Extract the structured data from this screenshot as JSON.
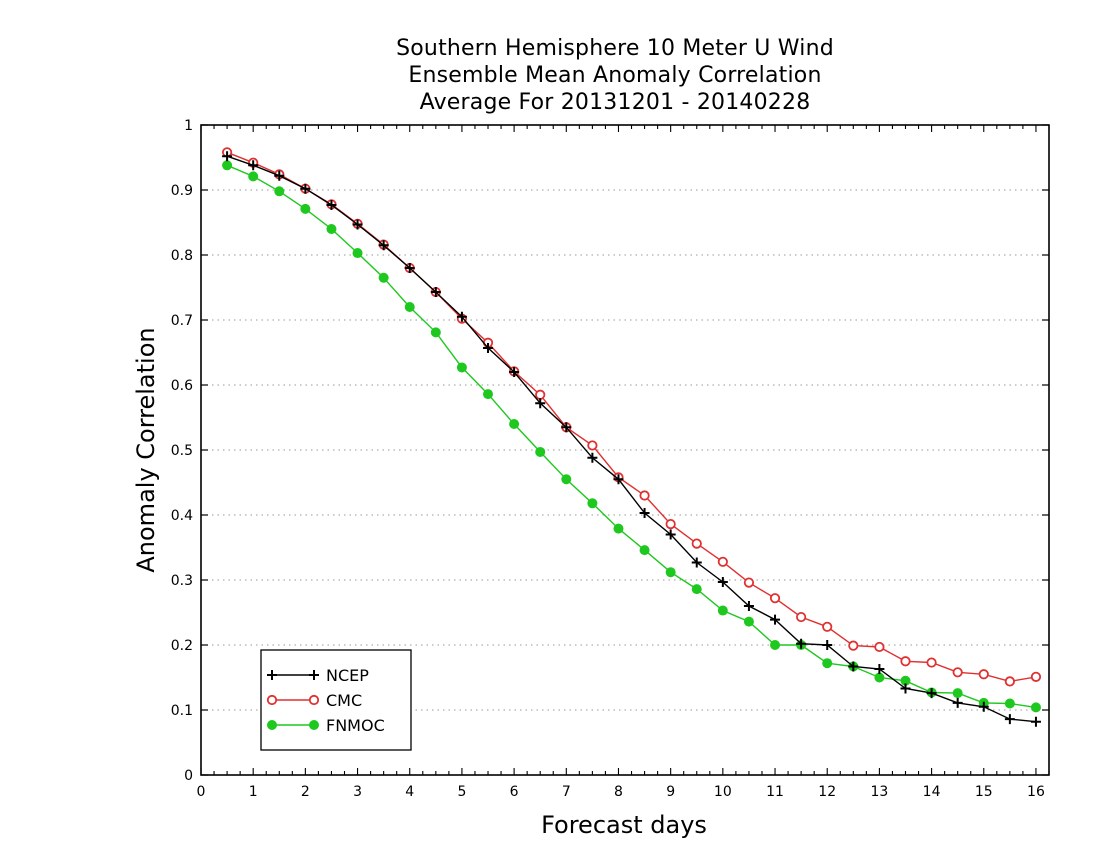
{
  "chart_data": {
    "type": "line",
    "title": [
      "Southern Hemisphere 10 Meter U Wind",
      "Ensemble Mean Anomaly Correlation",
      "Average For 20131201 - 20140228"
    ],
    "xlabel": "Forecast days",
    "ylabel": "Anomaly Correlation",
    "xlim": [
      0,
      16.25
    ],
    "ylim": [
      0,
      1
    ],
    "xticks": [
      "0",
      "1",
      "2",
      "3",
      "4",
      "5",
      "6",
      "7",
      "8",
      "9",
      "10",
      "11",
      "12",
      "13",
      "14",
      "15",
      "16"
    ],
    "yticks": [
      "0",
      "0.1",
      "0.2",
      "0.3",
      "0.4",
      "0.5",
      "0.6",
      "0.7",
      "0.8",
      "0.9",
      "1"
    ],
    "grid": "horizontal dotted",
    "legend_position": "bottom-left",
    "x": [
      0.5,
      1,
      1.5,
      2,
      2.5,
      3,
      3.5,
      4,
      4.5,
      5,
      5.5,
      6,
      6.5,
      7,
      7.5,
      8,
      8.5,
      9,
      9.5,
      10,
      10.5,
      11,
      11.5,
      12,
      12.5,
      13,
      13.5,
      14,
      14.5,
      15,
      15.5,
      16
    ],
    "series": [
      {
        "name": "NCEP",
        "color": "#000000",
        "marker": "plus",
        "values": [
          0.952,
          0.938,
          0.922,
          0.902,
          0.877,
          0.847,
          0.815,
          0.78,
          0.743,
          0.705,
          0.657,
          0.62,
          0.572,
          0.535,
          0.488,
          0.455,
          0.403,
          0.37,
          0.327,
          0.297,
          0.26,
          0.239,
          0.202,
          0.2,
          0.167,
          0.163,
          0.133,
          0.126,
          0.111,
          0.105,
          0.086,
          0.082
        ]
      },
      {
        "name": "CMC",
        "color": "#e03030",
        "marker": "open-circle",
        "values": [
          0.958,
          0.942,
          0.924,
          0.902,
          0.878,
          0.848,
          0.816,
          0.78,
          0.743,
          0.702,
          0.665,
          0.621,
          0.585,
          0.535,
          0.507,
          0.458,
          0.43,
          0.386,
          0.356,
          0.328,
          0.296,
          0.272,
          0.243,
          0.228,
          0.199,
          0.197,
          0.175,
          0.173,
          0.158,
          0.155,
          0.144,
          0.151
        ]
      },
      {
        "name": "FNMOC",
        "color": "#1ec81e",
        "marker": "filled-circle",
        "values": [
          0.938,
          0.921,
          0.898,
          0.871,
          0.84,
          0.803,
          0.765,
          0.72,
          0.681,
          0.627,
          0.586,
          0.54,
          0.497,
          0.455,
          0.418,
          0.379,
          0.346,
          0.312,
          0.286,
          0.253,
          0.236,
          0.2,
          0.2,
          0.172,
          0.167,
          0.15,
          0.145,
          0.127,
          0.126,
          0.111,
          0.11,
          0.104
        ]
      }
    ]
  }
}
